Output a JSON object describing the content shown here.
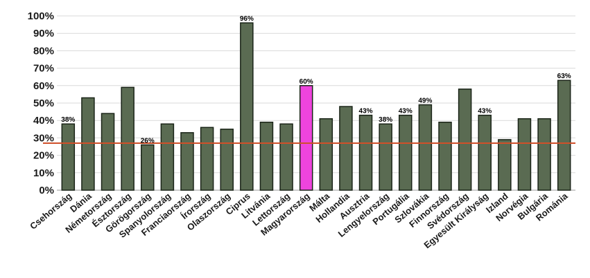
{
  "chart_data": {
    "type": "bar",
    "title": "",
    "xlabel": "",
    "ylabel": "",
    "ylim": [
      0,
      100
    ],
    "yticks": [
      "0%",
      "10%",
      "20%",
      "30%",
      "40%",
      "50%",
      "60%",
      "70%",
      "80%",
      "90%",
      "100%"
    ],
    "grid": true,
    "categories": [
      "Csehország",
      "Dánia",
      "Németország",
      "Észtország",
      "Görögország",
      "Spanyolország",
      "Franciaország",
      "Írország",
      "Olaszország",
      "Ciprus",
      "Litvánia",
      "Lettország",
      "Magyarország",
      "Málta",
      "Hollandia",
      "Ausztria",
      "Lengyelország",
      "Portugália",
      "Szlovákia",
      "Finnország",
      "Svédország",
      "Egyesült Királyság",
      "Izland",
      "Norvégia",
      "Bulgária",
      "Románia"
    ],
    "values": [
      38,
      53,
      44,
      59,
      26,
      38,
      33,
      36,
      35,
      96,
      39,
      38,
      60,
      41,
      48,
      43,
      38,
      43,
      49,
      39,
      58,
      43,
      29,
      41,
      41,
      63
    ],
    "data_labels": [
      "38%",
      "",
      "",
      "",
      "26%",
      "",
      "",
      "",
      "",
      "96%",
      "",
      "",
      "60%",
      "",
      "",
      "43%",
      "38%",
      "43%",
      "49%",
      "",
      "",
      "43%",
      "",
      "",
      "",
      "63%"
    ],
    "highlight_category": "Magyarország",
    "reference_line": 27,
    "colors": {
      "bar": "#5a6b52",
      "bar_edge": "#1a2418",
      "highlight": "#ee44dd",
      "reference_line": "#d0502a",
      "grid": "#d9d9d9"
    }
  }
}
